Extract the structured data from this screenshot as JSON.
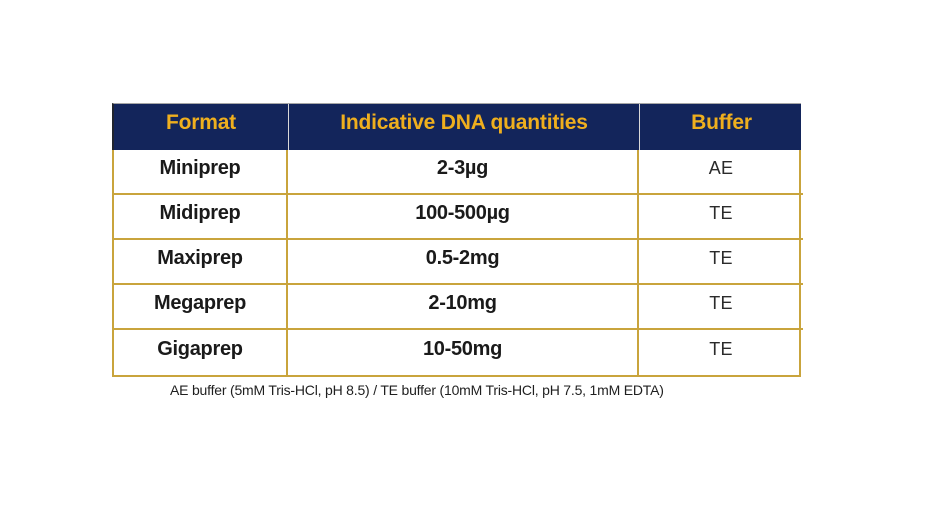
{
  "table": {
    "headers": {
      "format": "Format",
      "quantities": "Indicative DNA quantities",
      "buffer": "Buffer"
    },
    "rows": [
      {
        "format": "Miniprep",
        "quantity": "2-3µg",
        "buffer": "AE"
      },
      {
        "format": "Midiprep",
        "quantity": "100-500µg",
        "buffer": "TE"
      },
      {
        "format": "Maxiprep",
        "quantity": "0.5-2mg",
        "buffer": "TE"
      },
      {
        "format": "Megaprep",
        "quantity": "2-10mg",
        "buffer": "TE"
      },
      {
        "format": "Gigaprep",
        "quantity": "10-50mg",
        "buffer": "TE"
      }
    ],
    "footnote": "AE buffer (5mM Tris-HCl, pH 8.5) / TE buffer (10mM Tris-HCl, pH 7.5, 1mM EDTA)"
  },
  "colors": {
    "header_background": "#13255B",
    "header_text": "#EFAF1E",
    "table_border": "#C9A43C",
    "body_text": "#1A1A1A"
  }
}
